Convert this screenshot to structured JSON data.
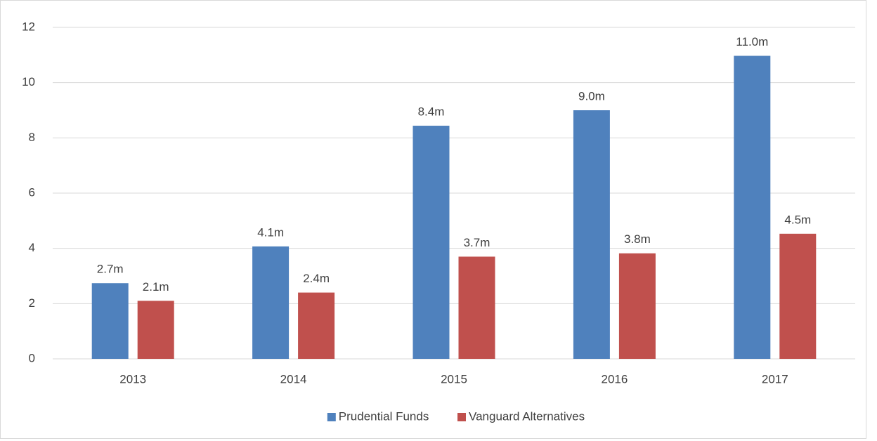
{
  "chart_data": {
    "type": "bar",
    "categories": [
      "2013",
      "2014",
      "2015",
      "2016",
      "2017"
    ],
    "series": [
      {
        "name": "Prudential Funds",
        "color": "#4f81bd",
        "values": [
          2.74,
          4.07,
          8.44,
          9.0,
          10.97
        ],
        "value_labels": [
          "2.7m",
          "4.1m",
          "8.4m",
          "9.0m",
          "11.0m"
        ]
      },
      {
        "name": "Vanguard Alternatives",
        "color": "#c0504d",
        "values": [
          2.1,
          2.4,
          3.7,
          3.82,
          4.53
        ],
        "value_labels": [
          "2.1m",
          "2.4m",
          "3.7m",
          "3.8m",
          "4.5m"
        ]
      }
    ],
    "ylim": [
      0,
      12
    ],
    "yticks": [
      0,
      2,
      4,
      6,
      8,
      10,
      12
    ],
    "grid": true,
    "legend": "bottom"
  }
}
